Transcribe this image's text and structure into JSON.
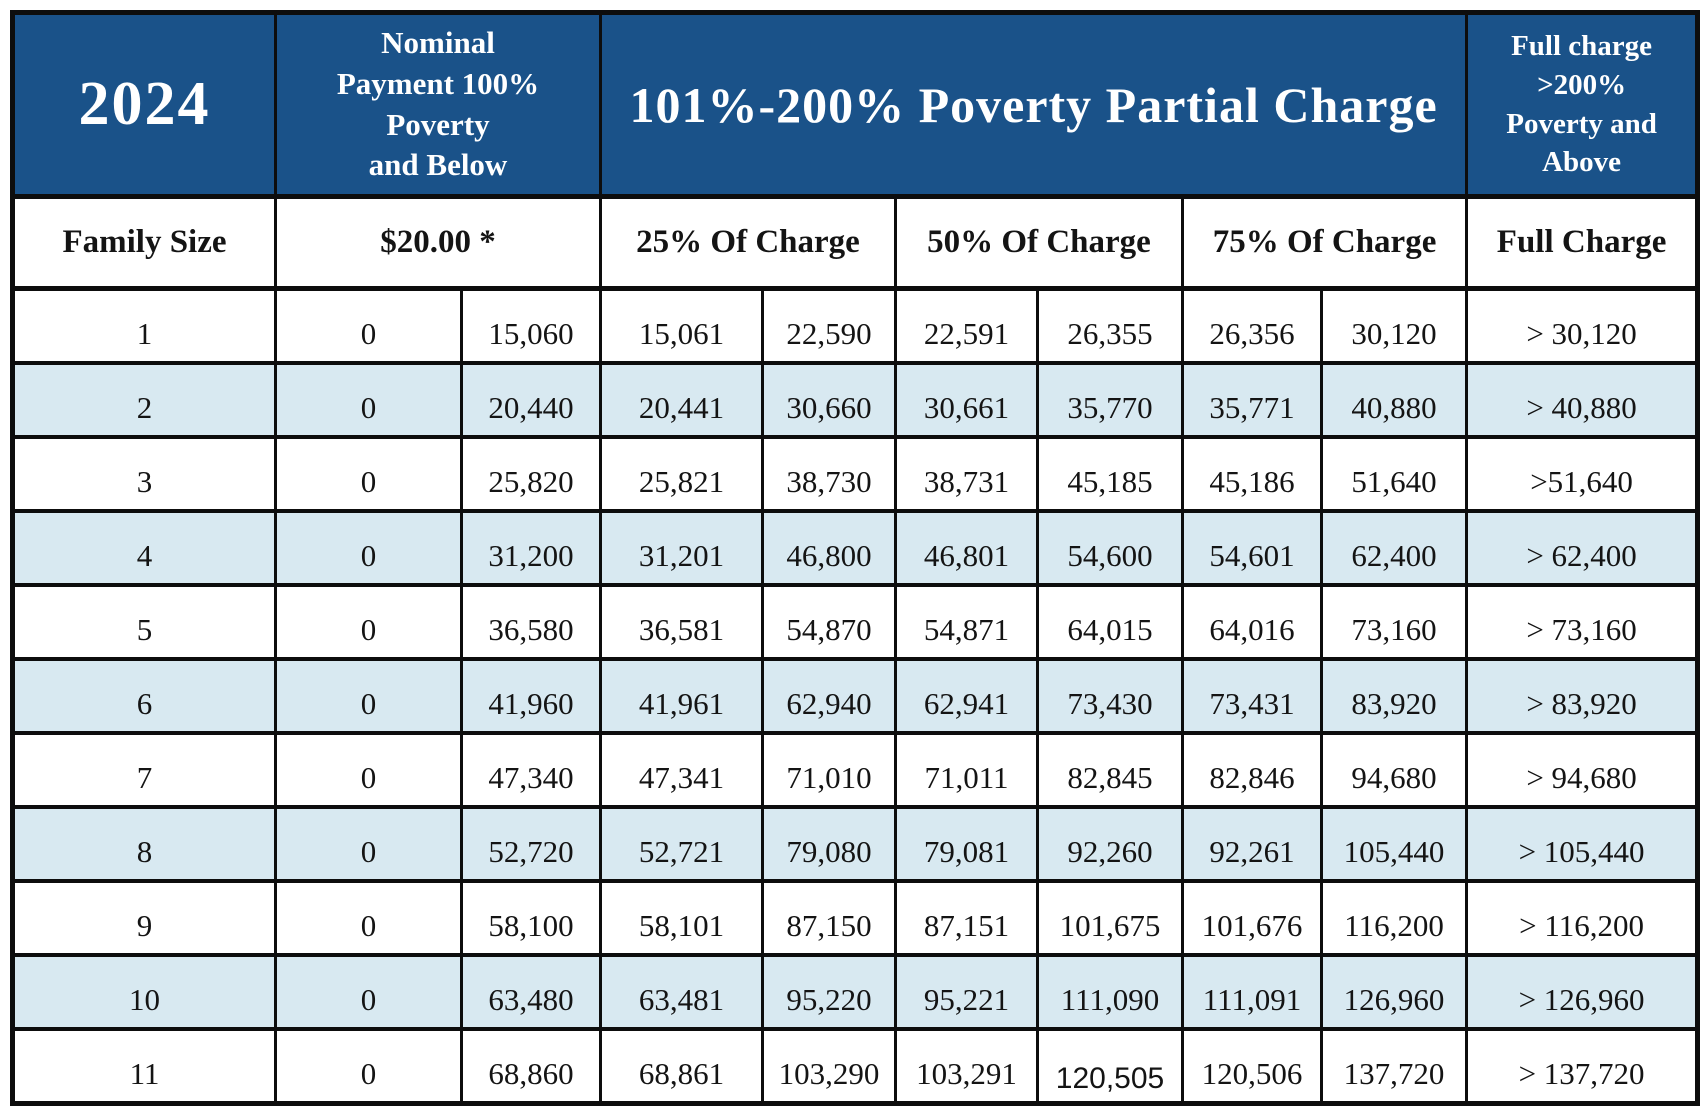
{
  "header": {
    "year": "2024",
    "nominal": "Nominal\nPayment 100%\nPoverty\nand Below",
    "partial": "101%-200% Poverty Partial Charge",
    "full": "Full charge\n>200%\nPoverty and\nAbove"
  },
  "subheader": {
    "family_size": "Family Size",
    "nominal_amount": "$20.00 *",
    "charge_25": "25% Of Charge",
    "charge_50": "50% Of Charge",
    "charge_75": "75% Of Charge",
    "full_charge": "Full Charge"
  },
  "colors": {
    "header_blue": "#1a5289",
    "stripe_blue": "#d8e9f1",
    "border_black": "#0d0d0d"
  },
  "rows": [
    {
      "family_size": "1",
      "cells": [
        "0",
        "15,060",
        "15,061",
        "22,590",
        "22,591",
        "26,355",
        "26,356",
        "30,120",
        "> 30,120"
      ]
    },
    {
      "family_size": "2",
      "cells": [
        "0",
        "20,440",
        "20,441",
        "30,660",
        "30,661",
        "35,770",
        "35,771",
        "40,880",
        "> 40,880"
      ]
    },
    {
      "family_size": "3",
      "cells": [
        "0",
        "25,820",
        "25,821",
        "38,730",
        "38,731",
        "45,185",
        "45,186",
        "51,640",
        ">51,640"
      ]
    },
    {
      "family_size": "4",
      "cells": [
        "0",
        "31,200",
        "31,201",
        "46,800",
        "46,801",
        "54,600",
        "54,601",
        "62,400",
        "> 62,400"
      ]
    },
    {
      "family_size": "5",
      "cells": [
        "0",
        "36,580",
        "36,581",
        "54,870",
        "54,871",
        "64,015",
        "64,016",
        "73,160",
        "> 73,160"
      ]
    },
    {
      "family_size": "6",
      "cells": [
        "0",
        "41,960",
        "41,961",
        "62,940",
        "62,941",
        "73,430",
        "73,431",
        "83,920",
        "> 83,920"
      ]
    },
    {
      "family_size": "7",
      "cells": [
        "0",
        "47,340",
        "47,341",
        "71,010",
        "71,011",
        "82,845",
        "82,846",
        "94,680",
        "> 94,680"
      ]
    },
    {
      "family_size": "8",
      "cells": [
        "0",
        "52,720",
        "52,721",
        "79,080",
        "79,081",
        "92,260",
        "92,261",
        "105,440",
        "> 105,440"
      ]
    },
    {
      "family_size": "9",
      "cells": [
        "0",
        "58,100",
        "58,101",
        "87,150",
        "87,151",
        "101,675",
        "101,676",
        "116,200",
        "> 116,200"
      ]
    },
    {
      "family_size": "10",
      "cells": [
        "0",
        "63,480",
        "63,481",
        "95,220",
        "95,221",
        "111,090",
        "111,091",
        "126,960",
        "> 126,960"
      ]
    },
    {
      "family_size": "11",
      "cells": [
        "0",
        "68,860",
        "68,861",
        "103,290",
        "103,291",
        "120,505",
        "120,506",
        "137,720",
        "> 137,720"
      ]
    }
  ]
}
